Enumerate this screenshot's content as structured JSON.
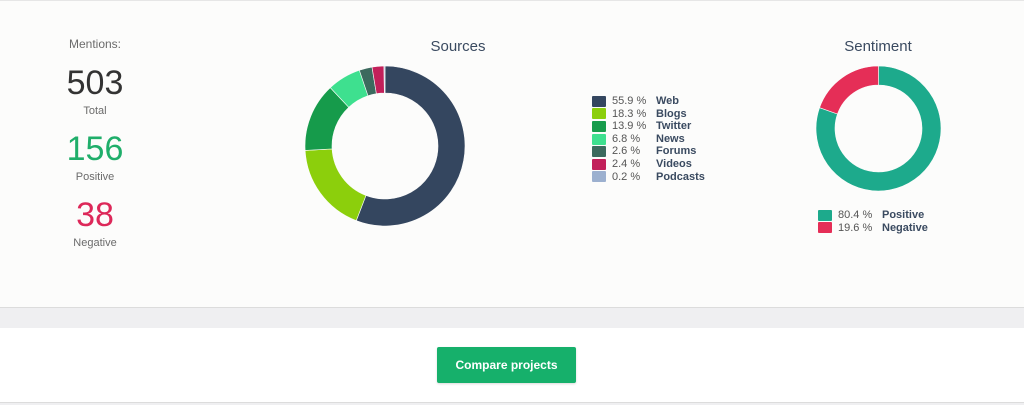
{
  "mentions": {
    "label": "Mentions:",
    "total": {
      "value": "503",
      "caption": "Total"
    },
    "positive": {
      "value": "156",
      "caption": "Positive"
    },
    "negative": {
      "value": "38",
      "caption": "Negative"
    }
  },
  "sources": {
    "title": "Sources",
    "items": [
      {
        "pct": "55.9 %",
        "name": "Web",
        "value": 55.9,
        "color": "#34465f"
      },
      {
        "pct": "18.3 %",
        "name": "Blogs",
        "value": 18.3,
        "color": "#8ccf0c"
      },
      {
        "pct": "13.9 %",
        "name": "Twitter",
        "value": 13.9,
        "color": "#169b4b"
      },
      {
        "pct": "6.8 %",
        "name": "News",
        "value": 6.8,
        "color": "#3ee08f"
      },
      {
        "pct": "2.6 %",
        "name": "Forums",
        "value": 2.6,
        "color": "#3c6a5e"
      },
      {
        "pct": "2.4 %",
        "name": "Videos",
        "value": 2.4,
        "color": "#c2205a"
      },
      {
        "pct": "0.2 %",
        "name": "Podcasts",
        "value": 0.2,
        "color": "#9cb0cf"
      }
    ]
  },
  "sentiment": {
    "title": "Sentiment",
    "items": [
      {
        "pct": "80.4 %",
        "name": "Positive",
        "value": 80.4,
        "color": "#1daa8c"
      },
      {
        "pct": "19.6 %",
        "name": "Negative",
        "value": 19.6,
        "color": "#e52e57"
      }
    ]
  },
  "actions": {
    "compare_label": "Compare projects"
  }
}
